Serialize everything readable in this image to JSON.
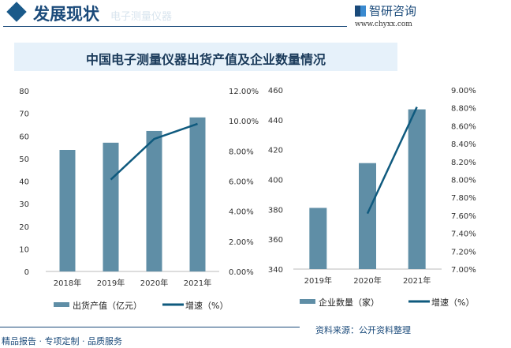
{
  "header": {
    "title": "发展现状",
    "subtitle": "电子测量仪器",
    "logo": "智研咨询",
    "url": "www.chyxx.com"
  },
  "footer": {
    "slogan": "精品报告 · 专项定制 · 品质服务",
    "source": "资料来源：公开资料整理"
  },
  "colors": {
    "bar": "#5f8ea6",
    "line": "#0f5a7e"
  },
  "chart_data": [
    {
      "type": "bar+line",
      "title": "中国电子测量仪器出货产值及企业数量情况",
      "categories": [
        "2018年",
        "2019年",
        "2020年",
        "2021年"
      ],
      "series": [
        {
          "name": "出货产值（亿元）",
          "type": "bar",
          "axis": "left",
          "values": [
            53.8,
            57,
            62.2,
            68.2
          ]
        },
        {
          "name": "增速（%）",
          "type": "line",
          "axis": "right",
          "values": [
            null,
            6.1,
            8.8,
            9.8
          ]
        }
      ],
      "ylim": [
        0,
        80
      ],
      "yticks": [
        "0",
        "10",
        "20",
        "30",
        "40",
        "50",
        "60",
        "70",
        "80"
      ],
      "y2lim": [
        0,
        12
      ],
      "y2ticks": [
        "0.00%",
        "2.00%",
        "4.00%",
        "6.00%",
        "8.00%",
        "10.00%",
        "12.00%"
      ]
    },
    {
      "type": "bar+line",
      "categories": [
        "2019年",
        "2020年",
        "2021年"
      ],
      "series": [
        {
          "name": "企业数量（家）",
          "type": "bar",
          "axis": "left",
          "values": [
            381,
            411,
            447
          ]
        },
        {
          "name": "增速（%）",
          "type": "line",
          "axis": "right",
          "values": [
            null,
            7.62,
            8.81
          ]
        }
      ],
      "ylim": [
        340,
        460
      ],
      "yticks": [
        "340",
        "360",
        "380",
        "400",
        "420",
        "440",
        "460"
      ],
      "y2lim": [
        7,
        9
      ],
      "y2ticks": [
        "7.00%",
        "7.20%",
        "7.40%",
        "7.60%",
        "7.80%",
        "8.00%",
        "8.20%",
        "8.40%",
        "8.60%",
        "8.80%",
        "9.00%"
      ]
    }
  ]
}
